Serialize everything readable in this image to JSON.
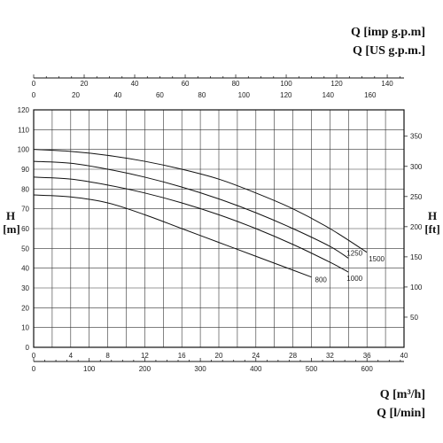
{
  "chart_data": {
    "type": "line",
    "x_axis": {
      "primary_unit": "Q [m³/h]",
      "primary_range": [
        0,
        40
      ],
      "primary_ticks": [
        "0",
        "4",
        "8",
        "12",
        "16",
        "20",
        "24",
        "28",
        "32",
        "36",
        "40"
      ],
      "secondary_unit": "Q [l/min]",
      "secondary_ticks": [
        "0",
        "100",
        "200",
        "300",
        "400",
        "500",
        "600"
      ],
      "top_units": [
        "Q [imp g.p.m]",
        "Q [US g.p.m.]"
      ],
      "imp_ticks": [
        "0",
        "20",
        "40",
        "60",
        "80",
        "100",
        "120",
        "140"
      ],
      "us_ticks": [
        "0",
        "20",
        "40",
        "60",
        "80",
        "100",
        "120",
        "140",
        "160"
      ]
    },
    "y_axis": {
      "left_label": "H",
      "left_unit": "[m]",
      "left_range": [
        0,
        120
      ],
      "left_ticks": [
        "0",
        "10",
        "20",
        "30",
        "40",
        "50",
        "60",
        "70",
        "80",
        "90",
        "100",
        "110",
        "120"
      ],
      "right_label": "H",
      "right_unit": "[ft]",
      "right_ticks": [
        "50",
        "100",
        "150",
        "200",
        "250",
        "300",
        "350"
      ]
    },
    "grid": true,
    "series": [
      {
        "name": "800",
        "x": [
          0,
          4,
          8,
          12,
          16,
          20,
          24,
          28,
          30
        ],
        "y": [
          77,
          76,
          73,
          67,
          60,
          53,
          46,
          39,
          35.5
        ]
      },
      {
        "name": "1000",
        "x": [
          0,
          4,
          8,
          12,
          16,
          20,
          24,
          28,
          32,
          34
        ],
        "y": [
          86,
          85,
          82,
          78,
          73,
          67,
          60,
          52,
          43,
          38
        ]
      },
      {
        "name": "1250",
        "x": [
          0,
          4,
          8,
          12,
          16,
          20,
          24,
          28,
          32,
          34
        ],
        "y": [
          94,
          93,
          90,
          86,
          81,
          75,
          68,
          60,
          51,
          45
        ]
      },
      {
        "name": "1500",
        "x": [
          0,
          4,
          8,
          12,
          16,
          20,
          24,
          28,
          32,
          36
        ],
        "y": [
          100,
          99,
          97,
          94,
          90,
          85,
          78,
          70,
          60,
          48
        ]
      }
    ]
  }
}
